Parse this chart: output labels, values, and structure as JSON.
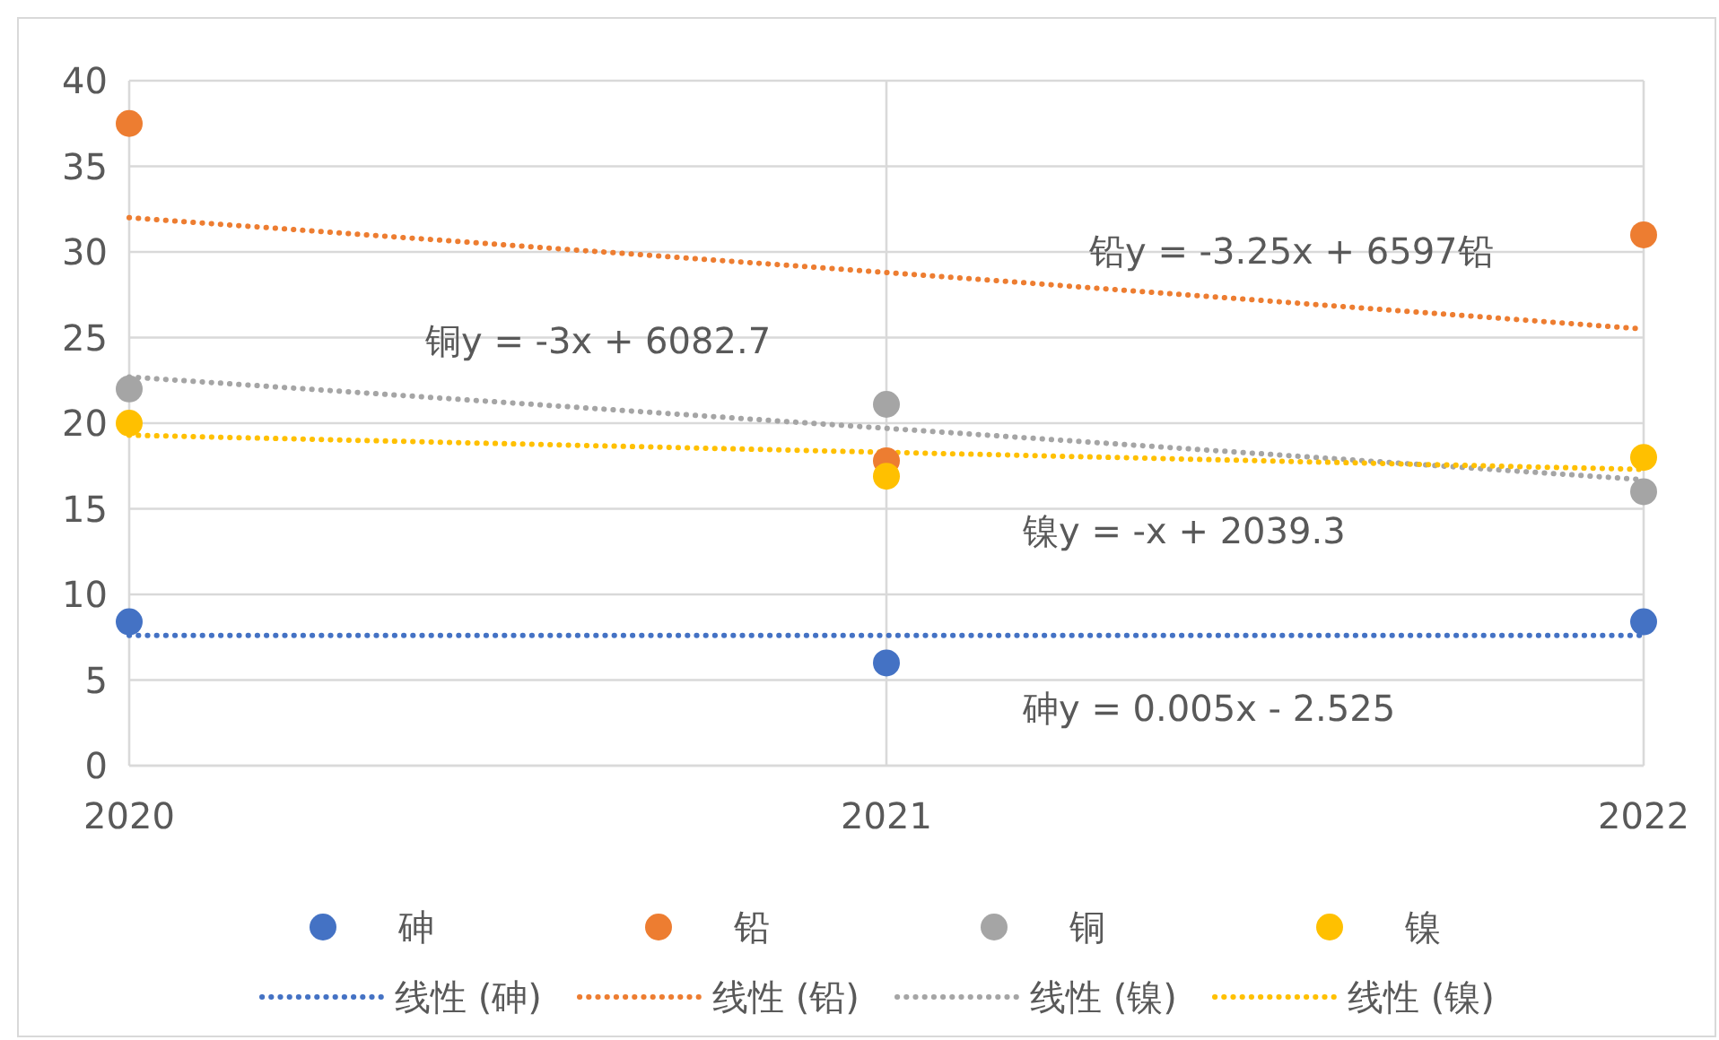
{
  "chart_data": {
    "type": "scatter",
    "x": [
      2020,
      2021,
      2022
    ],
    "xlim": [
      2020,
      2022
    ],
    "xticks": [
      2020,
      2021,
      2022
    ],
    "ylim": [
      0,
      40
    ],
    "yticks": [
      0,
      5,
      10,
      15,
      20,
      25,
      30,
      35,
      40
    ],
    "grid": true,
    "legend": "bottom",
    "marker": "circle",
    "series": [
      {
        "name": "砷",
        "color": "#4472c4",
        "values": [
          8.4,
          6,
          8.4
        ]
      },
      {
        "name": "铅",
        "color": "#ed7d31",
        "values": [
          37.5,
          17.8,
          31
        ]
      },
      {
        "name": "铜",
        "color": "#a5a5a5",
        "values": [
          22,
          21.1,
          16
        ]
      },
      {
        "name": "镍",
        "color": "#ffc000",
        "values": [
          20,
          16.9,
          18
        ]
      },
      {
        "name": "线性 (砷)",
        "type": "line",
        "line_style": "dotted",
        "marker": "none",
        "color": "#4472c4",
        "values": [
          7.6,
          7.6,
          7.6
        ]
      },
      {
        "name": "线性 (铅)",
        "type": "line",
        "line_style": "dotted",
        "marker": "none",
        "color": "#ed7d31",
        "values": [
          32,
          28.8,
          25.5
        ]
      },
      {
        "name": "线性 (镍)",
        "type": "line",
        "line_style": "dotted",
        "marker": "none",
        "color": "#a5a5a5",
        "values": [
          22.7,
          19.7,
          16.7
        ]
      },
      {
        "name": "线性 (镍)",
        "type": "line",
        "line_style": "dotted",
        "marker": "none",
        "color": "#ffc000",
        "values": [
          19.3,
          18.3,
          17.3
        ]
      }
    ],
    "annotations": [
      "铅y = -3.25x + 6597铅",
      "铜y = -3x + 6082.7",
      "镍y = -x + 2039.3",
      "砷y = 0.005x - 2.525"
    ]
  }
}
